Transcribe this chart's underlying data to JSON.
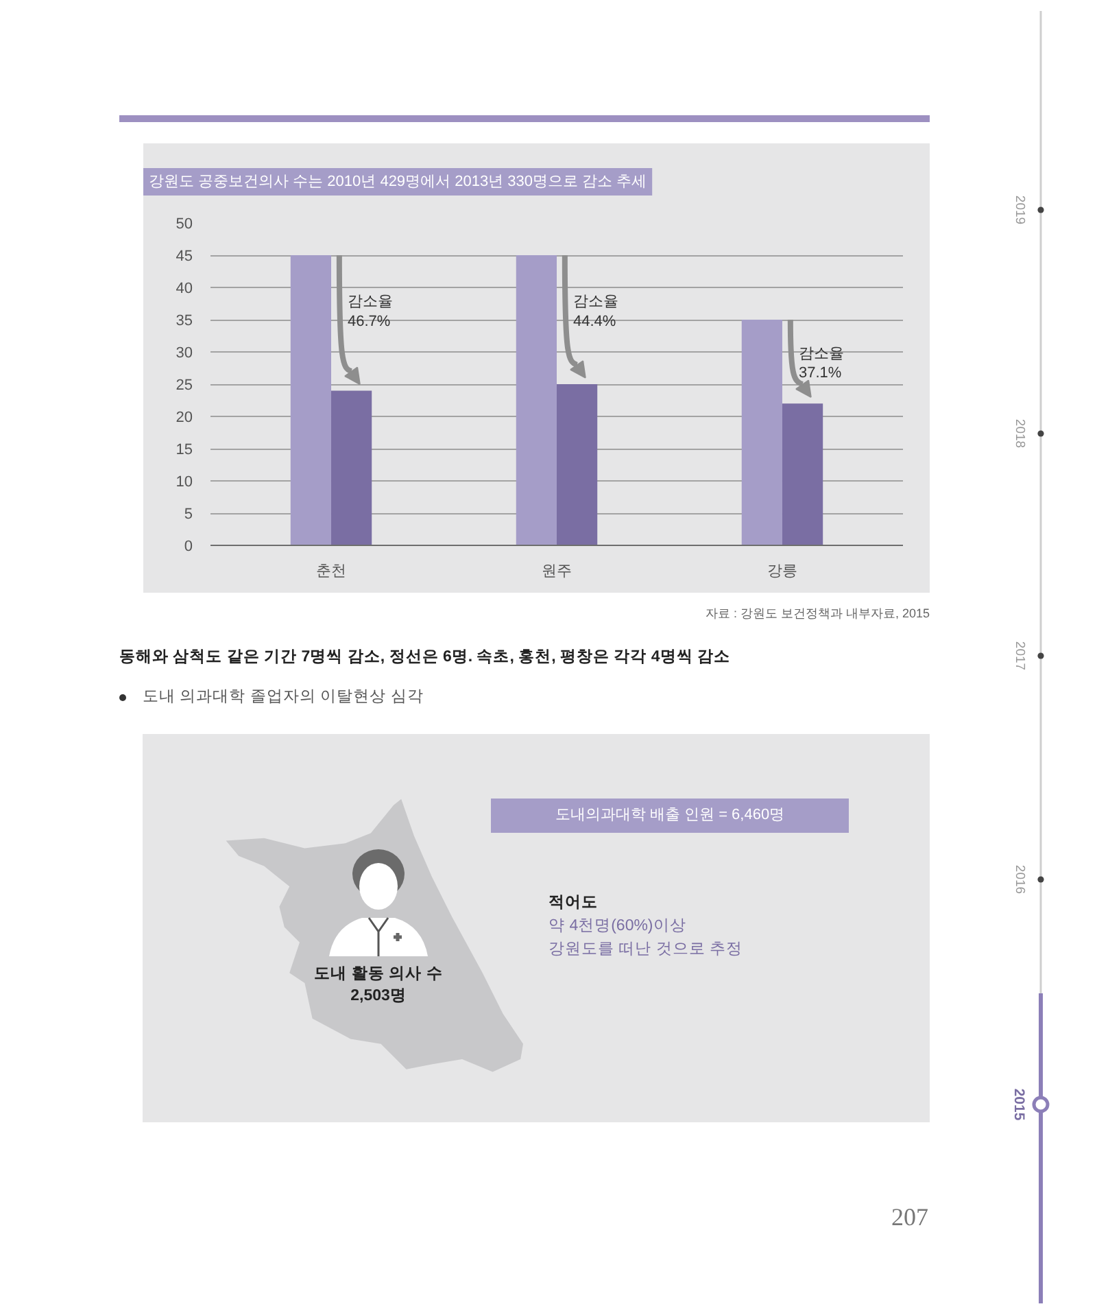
{
  "chart_data": {
    "type": "bar",
    "title": "강원도 공중보건의사 수는 2010년 429명에서 2013년 330명으로 감소 추세",
    "categories": [
      "춘천",
      "원주",
      "강릉"
    ],
    "series": [
      {
        "color": "#a59dc8",
        "values": [
          45,
          45,
          35
        ]
      },
      {
        "color": "#7a6ea3",
        "values": [
          24,
          25,
          22
        ]
      }
    ],
    "ylim": [
      0,
      50
    ],
    "yticks": [
      0,
      5,
      10,
      15,
      20,
      25,
      30,
      35,
      40,
      45,
      50
    ],
    "grid": "y",
    "annotations": [
      {
        "text": "감소율\n46.7%",
        "x": "춘천",
        "y": 39
      },
      {
        "text": "감소율\n44.4%",
        "x": "원주",
        "y": 39
      },
      {
        "text": "감소율\n37.1%",
        "x": "강릉",
        "y": 31
      },
      "자료 : 강원도 보건정책과 내부자료, 2015",
      "동해와 삼척도 같은 기간 7명씩 감소, 정선은 6명. 속초, 홍천, 평창은 각각 4명씩 감소",
      "도내 의과대학 졸업자의 이탈현상 심각",
      "도내의과대학 배출 인원 = 6,460명",
      "적어도",
      "약 4천명(60%)이상\n강원도를 떠난 것으로 추정",
      "도내 활동 의사 수\n2,503명",
      "207",
      "2019",
      "2018",
      "2017",
      "2016",
      "2015"
    ]
  }
}
